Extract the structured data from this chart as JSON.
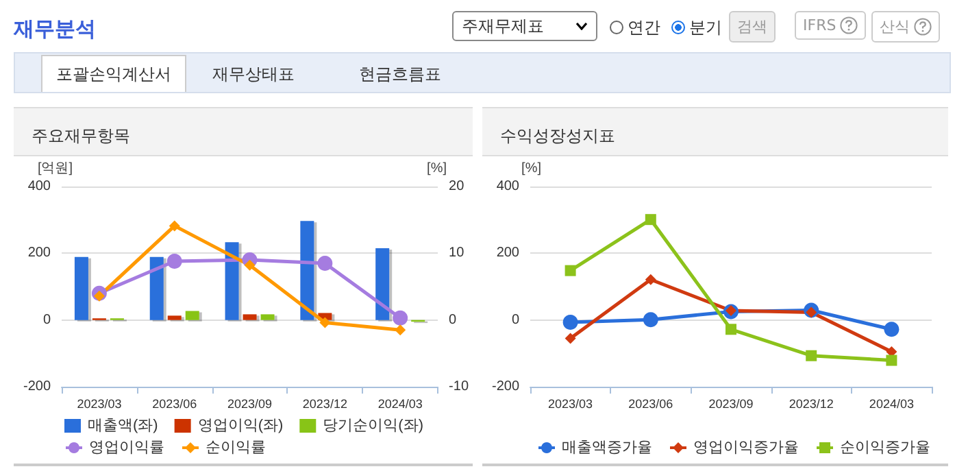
{
  "chart_data": [
    {
      "type": "other",
      "annotations": [
        "재무분석",
        "주재무제표",
        "연간",
        "분기",
        "검색",
        "IFRS",
        "산식",
        "포괄손익계산서",
        "재무상태표",
        "현금흐름표"
      ]
    },
    {
      "type": "bar",
      "title": "주요재무항목",
      "ylabel": "[억원]",
      "y2label": "[%]",
      "categories": [
        "2023/03",
        "2023/06",
        "2023/09",
        "2023/12",
        "2024/03"
      ],
      "ylim": [
        -200,
        400
      ],
      "yticks": [
        -200,
        0,
        200,
        400
      ],
      "y2lim": [
        -10,
        20
      ],
      "y2ticks": [
        -10,
        0,
        10,
        20
      ],
      "grid": "y",
      "legend": "bottom",
      "series": [
        {
          "name": "매출액(좌)",
          "color": "#2a6fdb",
          "values": [
            189,
            189,
            233,
            297,
            215
          ]
        },
        {
          "name": "영업이익(좌)",
          "color": "#cc3300",
          "values": [
            5,
            13,
            17,
            21,
            0
          ]
        },
        {
          "name": "당기순이익(좌)",
          "color": "#88c417",
          "values": [
            5,
            27,
            17,
            0,
            -5
          ]
        },
        {
          "name": "영업이익률",
          "type": "line",
          "axis": "y2",
          "marker": "circle",
          "color": "#a57ce0",
          "values": [
            4,
            8.8,
            9,
            8.5,
            0.3
          ]
        },
        {
          "name": "순이익률",
          "type": "line",
          "axis": "y2",
          "marker": "diamond",
          "color": "#ff9900",
          "values": [
            3.6,
            14.1,
            8.2,
            -0.4,
            -1.5
          ]
        }
      ]
    },
    {
      "type": "line",
      "title": "수익성장성지표",
      "ylabel": "[%]",
      "categories": [
        "2023/03",
        "2023/06",
        "2023/09",
        "2023/12",
        "2024/03"
      ],
      "ylim": [
        -200,
        400
      ],
      "yticks": [
        -200,
        0,
        200,
        400
      ],
      "grid": "y",
      "legend": "bottom",
      "series": [
        {
          "name": "매출액증가율",
          "marker": "circle",
          "color": "#2a6fdb",
          "values": [
            -7,
            1,
            25,
            29,
            -28
          ]
        },
        {
          "name": "영업이익증가율",
          "marker": "diamond",
          "color": "#d03a10",
          "values": [
            -55,
            121,
            28,
            23,
            -95
          ]
        },
        {
          "name": "순이익증가율",
          "marker": "square",
          "color": "#8cc21b",
          "values": [
            148,
            301,
            -28,
            -107,
            -121
          ]
        }
      ]
    }
  ]
}
